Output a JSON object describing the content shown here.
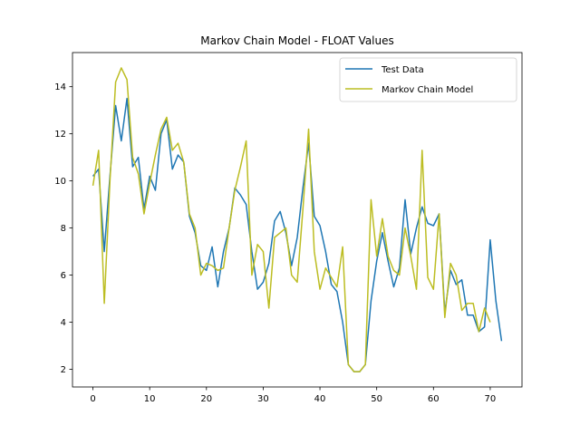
{
  "chart_data": {
    "type": "line",
    "title": "Markov Chain Model - FLOAT Values",
    "xlabel": "",
    "ylabel": "",
    "xlim": [
      -3.6,
      75.6
    ],
    "ylim": [
      1.25,
      15.45
    ],
    "xticks": [
      0,
      10,
      20,
      30,
      40,
      50,
      60,
      70
    ],
    "yticks": [
      2,
      4,
      6,
      8,
      10,
      12,
      14
    ],
    "grid": false,
    "legend_position": "top-right",
    "series": [
      {
        "name": "Test Data",
        "color": "#1f77b4",
        "x": [
          0,
          1,
          2,
          3,
          4,
          5,
          6,
          7,
          8,
          9,
          10,
          11,
          12,
          13,
          14,
          15,
          16,
          17,
          18,
          19,
          20,
          21,
          22,
          23,
          24,
          25,
          26,
          27,
          28,
          29,
          30,
          31,
          32,
          33,
          34,
          35,
          36,
          37,
          38,
          39,
          40,
          41,
          42,
          43,
          44,
          45,
          46,
          47,
          48,
          49,
          50,
          51,
          52,
          53,
          54,
          55,
          56,
          57,
          58,
          59,
          60,
          61,
          62,
          63,
          64,
          65,
          66,
          67,
          68,
          69,
          70,
          71,
          72
        ],
        "y": [
          10.2,
          10.5,
          7.0,
          10.2,
          13.2,
          11.7,
          13.5,
          10.6,
          11.0,
          8.8,
          10.2,
          9.6,
          12.0,
          12.6,
          10.5,
          11.1,
          10.8,
          8.5,
          7.8,
          6.4,
          6.2,
          7.2,
          5.5,
          7.0,
          8.0,
          9.7,
          9.4,
          9.0,
          7.0,
          5.4,
          5.7,
          6.5,
          8.3,
          8.7,
          7.8,
          6.4,
          7.6,
          9.7,
          11.6,
          8.5,
          8.1,
          7.0,
          5.6,
          5.3,
          4.0,
          2.2,
          1.9,
          1.9,
          2.2,
          4.9,
          6.6,
          7.8,
          6.6,
          5.5,
          6.3,
          9.2,
          6.9,
          8.0,
          8.9,
          8.2,
          8.1,
          8.6,
          4.4,
          6.2,
          5.6,
          5.8,
          4.3,
          4.3,
          3.6,
          3.8,
          7.5,
          4.9,
          3.2
        ]
      },
      {
        "name": "Markov Chain Model",
        "color": "#bcbd22",
        "x": [
          0,
          1,
          2,
          3,
          4,
          5,
          6,
          7,
          8,
          9,
          10,
          11,
          12,
          13,
          14,
          15,
          16,
          17,
          18,
          19,
          20,
          21,
          22,
          23,
          24,
          25,
          26,
          27,
          28,
          29,
          30,
          31,
          32,
          33,
          34,
          35,
          36,
          37,
          38,
          39,
          40,
          41,
          42,
          43,
          44,
          45,
          46,
          47,
          48,
          49,
          50,
          51,
          52,
          53,
          54,
          55,
          56,
          57,
          58,
          59,
          60,
          61,
          62,
          63,
          64,
          65,
          66,
          67,
          68,
          69,
          70
        ],
        "y": [
          9.8,
          11.3,
          4.8,
          10.0,
          14.2,
          14.8,
          14.3,
          11.0,
          10.3,
          8.6,
          9.9,
          11.1,
          12.2,
          12.7,
          11.3,
          11.6,
          10.8,
          8.6,
          8.0,
          6.0,
          6.5,
          6.4,
          6.2,
          6.3,
          8.0,
          9.6,
          10.6,
          11.7,
          6.0,
          7.3,
          7.0,
          4.6,
          7.6,
          7.8,
          8.0,
          6.0,
          5.7,
          8.8,
          12.2,
          7.0,
          5.4,
          6.3,
          5.9,
          5.5,
          7.2,
          2.2,
          1.9,
          1.9,
          2.2,
          9.2,
          6.8,
          8.4,
          6.8,
          6.2,
          6.0,
          8.0,
          6.8,
          5.4,
          11.3,
          5.9,
          5.4,
          8.6,
          4.2,
          6.5,
          6.0,
          4.5,
          4.8,
          4.8,
          3.6,
          4.6,
          4.0
        ]
      }
    ]
  }
}
